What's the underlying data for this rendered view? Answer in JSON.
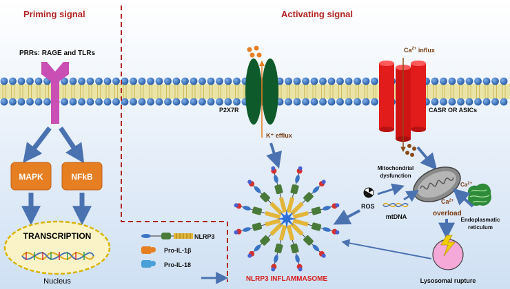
{
  "headings": {
    "priming": "Priming signal",
    "activating": "Activating signal"
  },
  "receptors": {
    "prrs": "PRRs: RAGE and TLRs",
    "p2x7r": "P2X7R",
    "casr": "CASR OR ASICs"
  },
  "ions": {
    "k_efflux": "K⁺ efflux",
    "ca_influx_base": "Ca",
    "ca_influx_sup": "2+",
    "ca_influx_rest": " influx",
    "ca_base": "Ca",
    "ca_sup": "2+",
    "ca_overload_sup_base": "Ca",
    "ca_overload_sup": "2+",
    "overload": "overload"
  },
  "boxes": {
    "mapk": "MAPK",
    "nfkb": "NFkB"
  },
  "nucleus": {
    "transcription": "TRANSCRIPTION",
    "label": "Nucleus"
  },
  "organelles": {
    "mito_line1": "Mitochondrial",
    "mito_line2": "dysfunction",
    "er_line1": "Endoplasmatic",
    "er_line2": "reticulum",
    "ros": "ROS",
    "mtdna": "mtDNA",
    "lysosome": "Lysosomal rupture"
  },
  "legend": {
    "nlrp3": "NLRP3",
    "pro_il1b": "Pro-IL-1β",
    "pro_il18": "Pro-IL-18"
  },
  "inflammasome_label": "NLRP3 INFLAMMASOME",
  "colors": {
    "heading_red": "#b22222",
    "label_brown": "#7a3b12",
    "orange_box": "#e67e22",
    "arrow_blue": "#4a72b0",
    "membrane_blue": "#3b73c4",
    "p2x7r_green": "#0f5a2a",
    "casr_red": "#e21b1b",
    "receptor_pink": "#c94fb5",
    "nucleus_fill": "#fbf3c8"
  }
}
